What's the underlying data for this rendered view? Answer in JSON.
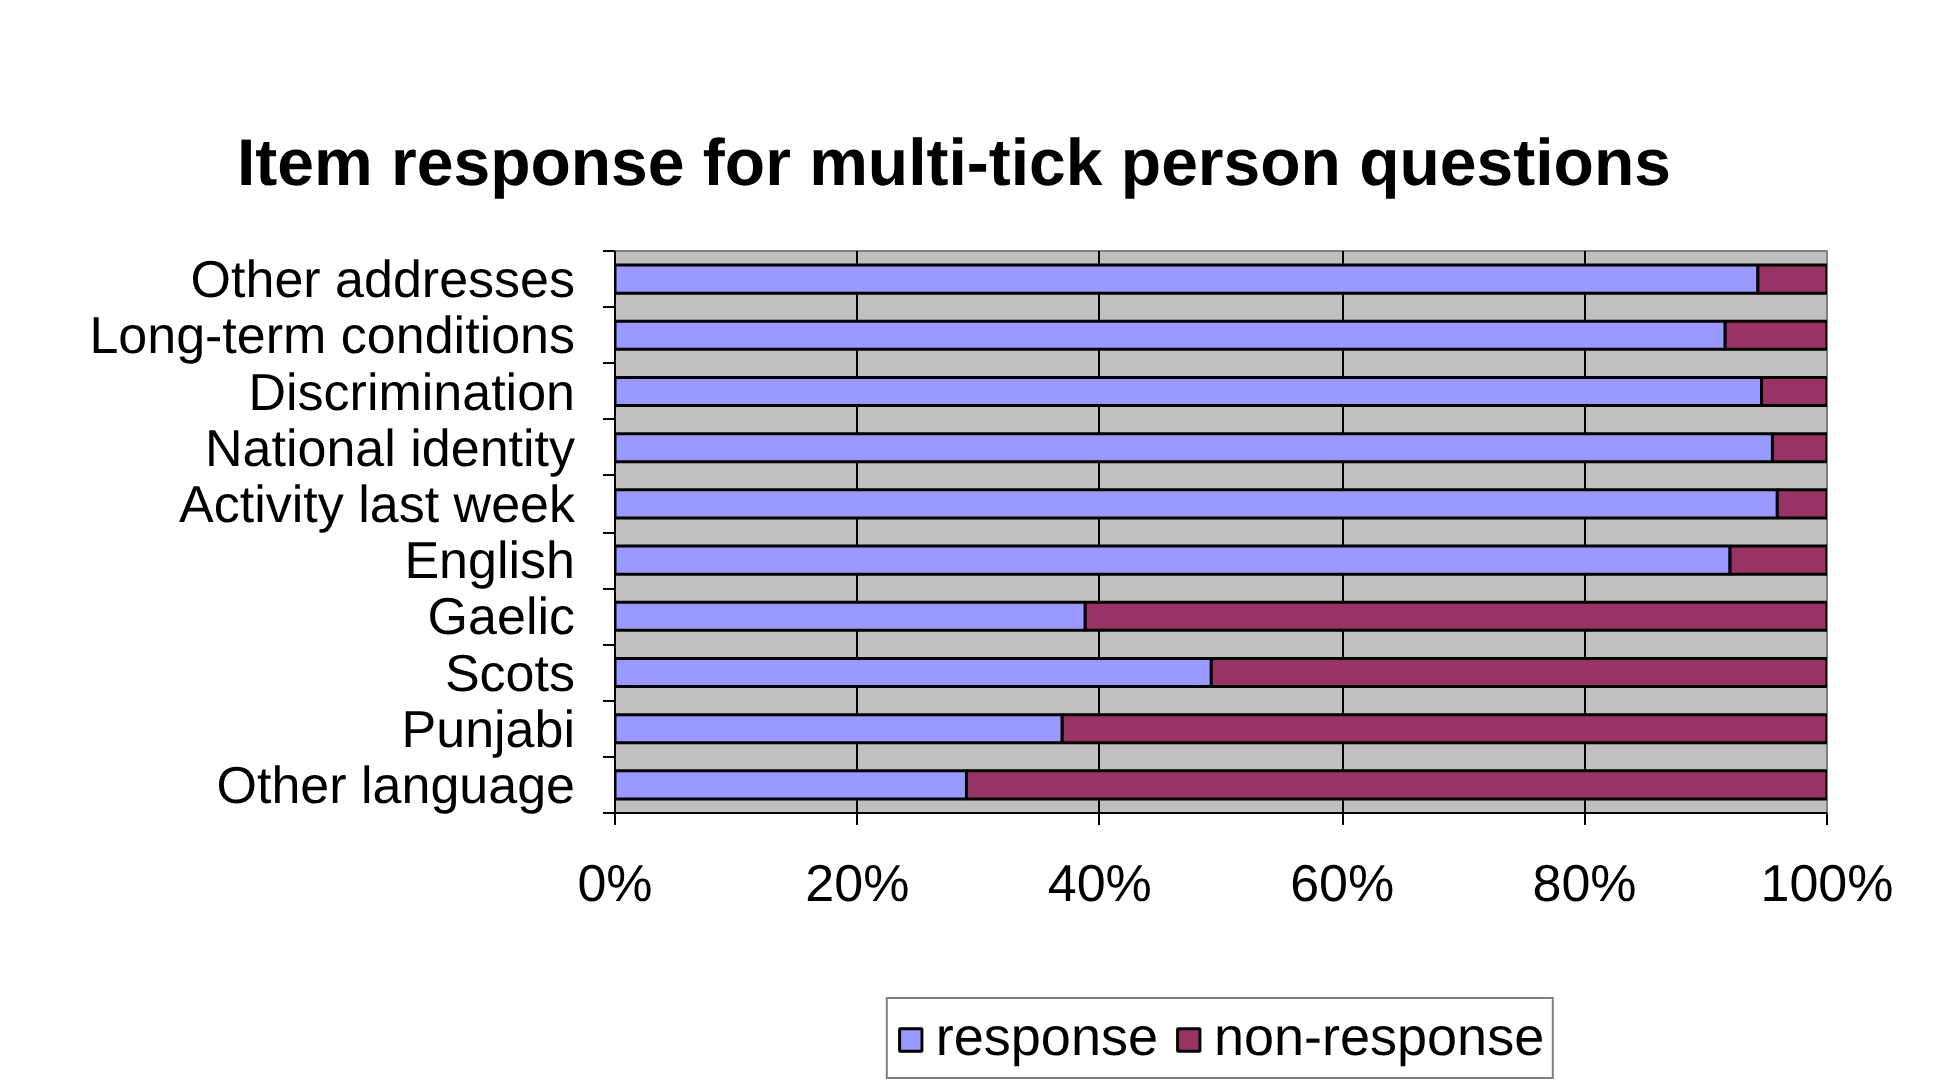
{
  "chart_data": {
    "type": "bar",
    "title": "Item response for multi-tick person questions",
    "orientation": "horizontal",
    "stacked": true,
    "categories": [
      "Other addresses",
      "Long-term conditions",
      "Discrimination",
      "National identity",
      "Activity last week",
      "English",
      "Gaelic",
      "Scots",
      "Punjabi",
      "Other language"
    ],
    "series": [
      {
        "name": "response",
        "color": "#9999ff",
        "values": [
          94.3,
          91.6,
          94.6,
          95.5,
          95.9,
          92.0,
          38.8,
          49.2,
          36.9,
          29.0
        ]
      },
      {
        "name": "non-response",
        "color": "#993366",
        "values": [
          5.7,
          8.4,
          5.4,
          4.5,
          4.1,
          8.0,
          61.2,
          50.8,
          63.1,
          71.0
        ]
      }
    ],
    "xlim": [
      0,
      100
    ],
    "xticks": [
      {
        "value": 0,
        "label": "0%"
      },
      {
        "value": 20,
        "label": "20%"
      },
      {
        "value": 40,
        "label": "40%"
      },
      {
        "value": 60,
        "label": "60%"
      },
      {
        "value": 80,
        "label": "80%"
      },
      {
        "value": 100,
        "label": "100%"
      }
    ],
    "grid": "x",
    "legend": "bottom"
  }
}
